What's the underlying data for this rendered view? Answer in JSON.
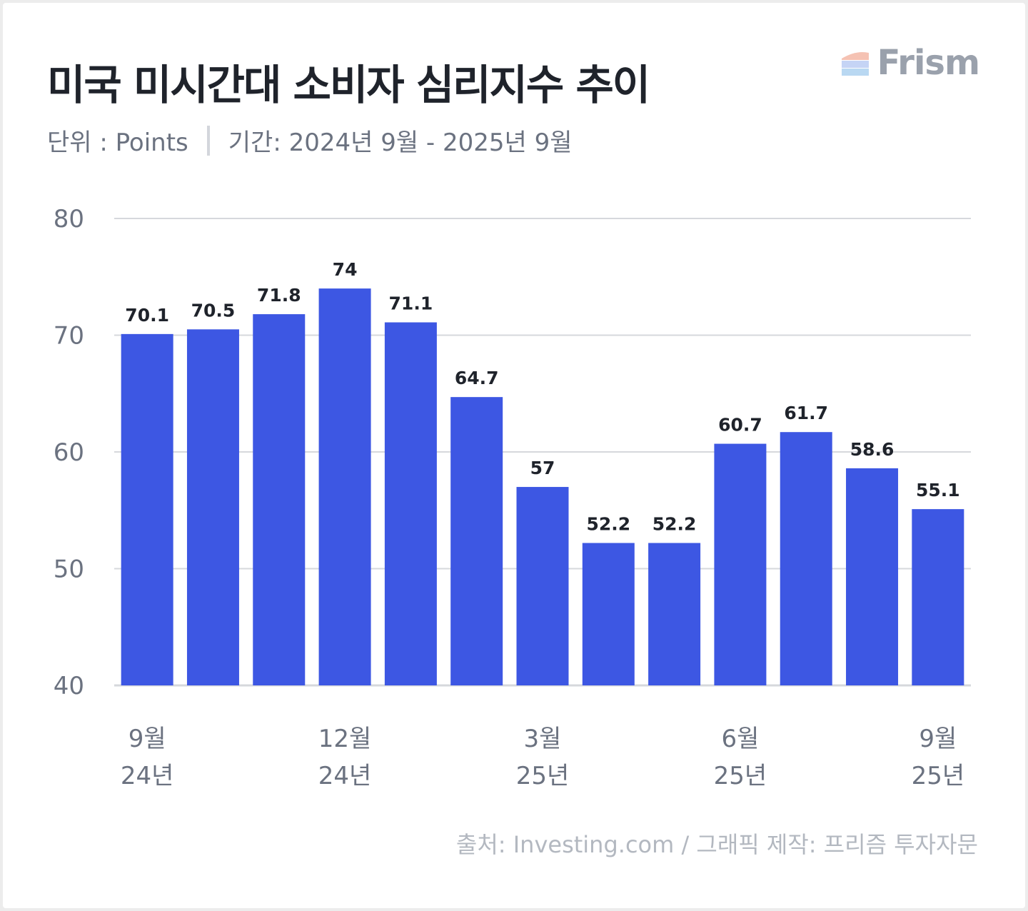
{
  "header": {
    "title": "미국 미시간대 소비자 심리지수 추이",
    "unit": "단위 : Points",
    "period": "기간: 2024년 9월 - 2025년 9월"
  },
  "brand": {
    "name": "Frism"
  },
  "footer": {
    "source": "출처: Investing.com / 그래픽 제작: 프리즘 투자자문"
  },
  "colors": {
    "bar": "#3d57e3",
    "grid": "#d6d8dc",
    "label": "#1f232b",
    "axis_text": "#6b7280"
  },
  "chart_data": {
    "type": "bar",
    "categories": [
      "2024-09",
      "2024-10",
      "2024-11",
      "2024-12",
      "2025-01",
      "2025-02",
      "2025-03",
      "2025-04",
      "2025-05",
      "2025-06",
      "2025-07",
      "2025-08",
      "2025-09"
    ],
    "values": [
      70.1,
      70.5,
      71.8,
      74,
      71.1,
      64.7,
      57,
      52.2,
      52.2,
      60.7,
      61.7,
      58.6,
      55.1
    ],
    "ylim": [
      40,
      80
    ],
    "yticks": [
      80,
      70,
      60,
      50,
      40
    ],
    "x_tick_labels": [
      {
        "index": 0,
        "month": "9월",
        "year": "24년"
      },
      {
        "index": 3,
        "month": "12월",
        "year": "24년"
      },
      {
        "index": 6,
        "month": "3월",
        "year": "25년"
      },
      {
        "index": 9,
        "month": "6월",
        "year": "25년"
      },
      {
        "index": 12,
        "month": "9월",
        "year": "25년"
      }
    ],
    "grid": true,
    "legend": "none"
  }
}
